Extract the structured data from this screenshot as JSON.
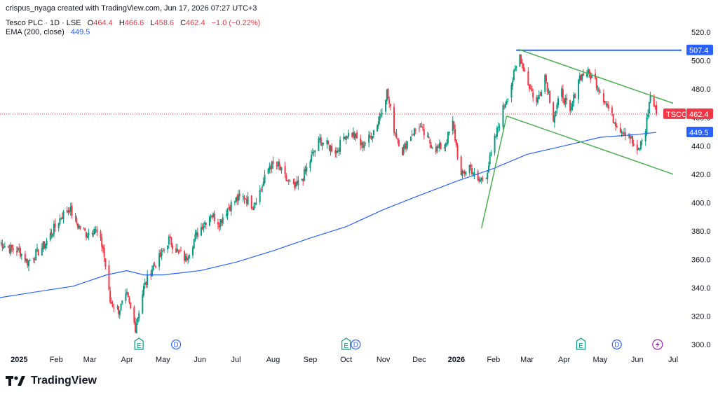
{
  "header": {
    "author_line": "crispus_nyaga created with TradingView.com, Jun 17, 2026 07:27 UTC+3",
    "symbol_line": "Tesco PLC · 1D · LSE",
    "o_label": "O",
    "o_value": "464.4",
    "h_label": "H",
    "h_value": "466.6",
    "l_label": "L",
    "l_value": "458.6",
    "c_label": "C",
    "c_value": "462.4",
    "change": "−1.0 (−0.22%)",
    "ema_label": "EMA (200, close)",
    "ema_value": "449.5"
  },
  "footer": {
    "brand": "TradingView"
  },
  "colors": {
    "up": "#089981",
    "down": "#f23645",
    "ema": "#2962ff",
    "channel": "#4caf50",
    "resistance": "#2962ff",
    "event_green": "#089981",
    "event_blue": "#2962ff",
    "event_purple": "#9c27b0"
  },
  "chart_data": {
    "type": "candlestick",
    "symbol": "TSCO",
    "ylim": [
      296,
      528
    ],
    "yticks": [
      300,
      320,
      340,
      360,
      380,
      400,
      420,
      440,
      460,
      480,
      500,
      520
    ],
    "ytick_labels": [
      "300.0",
      "320.0",
      "340.0",
      "360.0",
      "380.0",
      "400.0",
      "420.0",
      "440.0",
      "460.0",
      "480.0",
      "500.0",
      "520.0"
    ],
    "x_labels": [
      {
        "label": "2025",
        "bold": true,
        "date": "2025-01-01"
      },
      {
        "label": "Feb",
        "date": "2025-02-01"
      },
      {
        "label": "Mar",
        "date": "2025-03-01"
      },
      {
        "label": "Apr",
        "date": "2025-04-01"
      },
      {
        "label": "May",
        "date": "2025-05-01"
      },
      {
        "label": "Jun",
        "date": "2025-06-01"
      },
      {
        "label": "Jul",
        "date": "2025-07-01"
      },
      {
        "label": "Aug",
        "date": "2025-08-01"
      },
      {
        "label": "Sep",
        "date": "2025-09-01"
      },
      {
        "label": "Oct",
        "date": "2025-10-01"
      },
      {
        "label": "Nov",
        "date": "2025-11-01"
      },
      {
        "label": "Dec",
        "date": "2025-12-01"
      },
      {
        "label": "2026",
        "bold": true,
        "date": "2026-01-01"
      },
      {
        "label": "Feb",
        "date": "2026-02-01"
      },
      {
        "label": "Mar",
        "date": "2026-03-01"
      },
      {
        "label": "Apr",
        "date": "2026-04-01"
      },
      {
        "label": "May",
        "date": "2026-05-01"
      },
      {
        "label": "Jun",
        "date": "2026-06-01"
      },
      {
        "label": "Jul",
        "date": "2026-07-01"
      }
    ],
    "x_range": [
      "2024-12-16",
      "2026-07-08"
    ],
    "close_series": [
      [
        "2024-12-16",
        372
      ],
      [
        "2024-12-23",
        368
      ],
      [
        "2025-01-01",
        366
      ],
      [
        "2025-01-08",
        358
      ],
      [
        "2025-01-15",
        364
      ],
      [
        "2025-01-22",
        370
      ],
      [
        "2025-01-29",
        380
      ],
      [
        "2025-02-05",
        390
      ],
      [
        "2025-02-12",
        396
      ],
      [
        "2025-02-19",
        384
      ],
      [
        "2025-02-26",
        378
      ],
      [
        "2025-03-05",
        382
      ],
      [
        "2025-03-12",
        368
      ],
      [
        "2025-03-18",
        330
      ],
      [
        "2025-03-25",
        324
      ],
      [
        "2025-04-01",
        334
      ],
      [
        "2025-04-08",
        312
      ],
      [
        "2025-04-15",
        340
      ],
      [
        "2025-04-22",
        354
      ],
      [
        "2025-04-29",
        362
      ],
      [
        "2025-05-06",
        374
      ],
      [
        "2025-05-13",
        366
      ],
      [
        "2025-05-20",
        360
      ],
      [
        "2025-05-27",
        374
      ],
      [
        "2025-06-03",
        384
      ],
      [
        "2025-06-10",
        392
      ],
      [
        "2025-06-17",
        386
      ],
      [
        "2025-06-24",
        396
      ],
      [
        "2025-07-01",
        402
      ],
      [
        "2025-07-08",
        404
      ],
      [
        "2025-07-15",
        398
      ],
      [
        "2025-07-22",
        410
      ],
      [
        "2025-07-29",
        426
      ],
      [
        "2025-08-05",
        426
      ],
      [
        "2025-08-12",
        416
      ],
      [
        "2025-08-19",
        410
      ],
      [
        "2025-08-26",
        418
      ],
      [
        "2025-09-02",
        432
      ],
      [
        "2025-09-09",
        444
      ],
      [
        "2025-09-16",
        440
      ],
      [
        "2025-09-23",
        436
      ],
      [
        "2025-09-30",
        448
      ],
      [
        "2025-10-07",
        448
      ],
      [
        "2025-10-14",
        440
      ],
      [
        "2025-10-21",
        446
      ],
      [
        "2025-10-28",
        458
      ],
      [
        "2025-11-04",
        478
      ],
      [
        "2025-11-10",
        452
      ],
      [
        "2025-11-17",
        436
      ],
      [
        "2025-11-24",
        448
      ],
      [
        "2025-12-01",
        454
      ],
      [
        "2025-12-08",
        444
      ],
      [
        "2025-12-15",
        438
      ],
      [
        "2025-12-22",
        440
      ],
      [
        "2025-12-29",
        456
      ],
      [
        "2026-01-05",
        418
      ],
      [
        "2026-01-12",
        426
      ],
      [
        "2026-01-19",
        414
      ],
      [
        "2026-01-26",
        420
      ],
      [
        "2026-02-02",
        444
      ],
      [
        "2026-02-09",
        466
      ],
      [
        "2026-02-16",
        484
      ],
      [
        "2026-02-23",
        504
      ],
      [
        "2026-03-02",
        484
      ],
      [
        "2026-03-09",
        470
      ],
      [
        "2026-03-16",
        490
      ],
      [
        "2026-03-23",
        460
      ],
      [
        "2026-03-30",
        478
      ],
      [
        "2026-04-06",
        462
      ],
      [
        "2026-04-13",
        488
      ],
      [
        "2026-04-20",
        492
      ],
      [
        "2026-04-27",
        486
      ],
      [
        "2026-05-04",
        474
      ],
      [
        "2026-05-11",
        460
      ],
      [
        "2026-05-18",
        452
      ],
      [
        "2026-05-25",
        448
      ],
      [
        "2026-06-01",
        434
      ],
      [
        "2026-06-08",
        452
      ],
      [
        "2026-06-12",
        476
      ],
      [
        "2026-06-17",
        462.4
      ]
    ],
    "ema_series": [
      [
        "2024-12-16",
        333
      ],
      [
        "2025-01-15",
        337
      ],
      [
        "2025-02-15",
        341
      ],
      [
        "2025-03-15",
        349
      ],
      [
        "2025-04-01",
        352
      ],
      [
        "2025-04-15",
        349
      ],
      [
        "2025-05-01",
        349
      ],
      [
        "2025-06-01",
        352
      ],
      [
        "2025-07-01",
        358
      ],
      [
        "2025-08-01",
        366
      ],
      [
        "2025-09-01",
        375
      ],
      [
        "2025-10-01",
        383
      ],
      [
        "2025-11-01",
        395
      ],
      [
        "2025-12-01",
        405
      ],
      [
        "2026-01-01",
        415
      ],
      [
        "2026-02-01",
        424
      ],
      [
        "2026-03-01",
        434
      ],
      [
        "2026-04-01",
        440
      ],
      [
        "2026-05-01",
        446
      ],
      [
        "2026-06-01",
        448
      ],
      [
        "2026-06-17",
        449.5
      ]
    ],
    "drawings": {
      "resistance_level": 507.4,
      "resistance_from": "2026-02-20",
      "upper_channel": [
        [
          "2026-02-22",
          508
        ],
        [
          "2026-07-01",
          470
        ]
      ],
      "lower_channel": [
        [
          "2026-02-12",
          461
        ],
        [
          "2026-07-01",
          420
        ]
      ],
      "trend_line": [
        [
          "2026-01-22",
          382
        ],
        [
          "2026-02-12",
          461
        ]
      ]
    },
    "price_tags": [
      {
        "label": "507.4",
        "value": 507.4,
        "color": "#2962ff"
      },
      {
        "symbol": "TSCO",
        "label": "462.4",
        "value": 462.4,
        "color": "#f23645"
      },
      {
        "label": "449.5",
        "value": 449.5,
        "color": "#2962ff"
      }
    ],
    "events": [
      {
        "type": "E",
        "date": "2025-04-11",
        "color": "#089981"
      },
      {
        "type": "D",
        "date": "2025-05-12",
        "color": "#2962ff"
      },
      {
        "type": "E",
        "date": "2025-10-01",
        "color": "#089981"
      },
      {
        "type": "D",
        "date": "2025-10-09",
        "color": "#2962ff"
      },
      {
        "type": "E",
        "date": "2026-04-15",
        "color": "#089981"
      },
      {
        "type": "D",
        "date": "2026-05-15",
        "color": "#2962ff"
      },
      {
        "type": "split",
        "date": "2026-06-18",
        "color": "#9c27b0"
      }
    ]
  }
}
